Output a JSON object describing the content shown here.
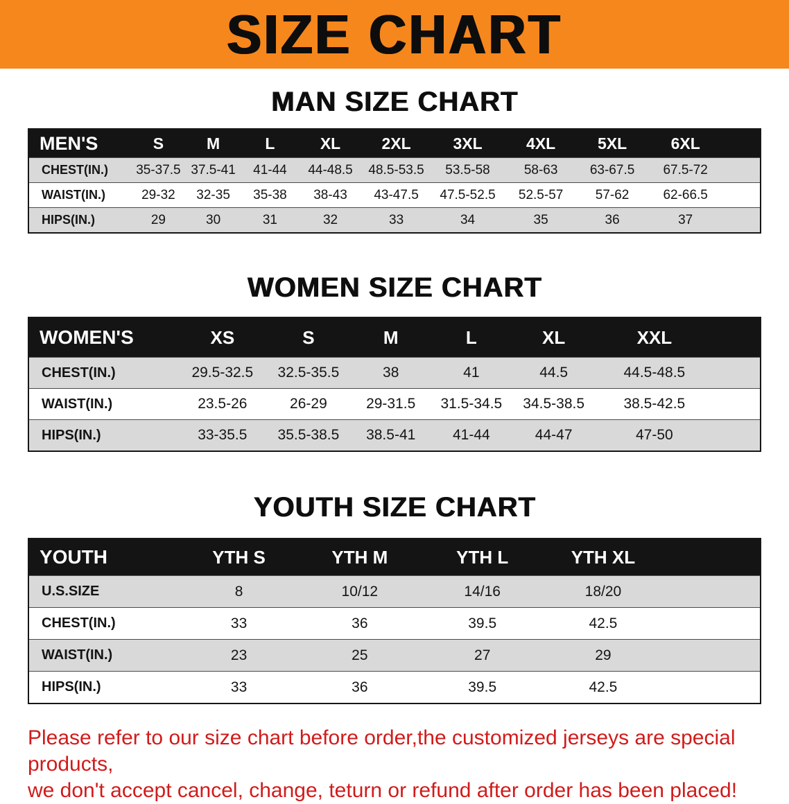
{
  "banner": {
    "title": "SIZE CHART",
    "bg_color": "#f6871d"
  },
  "colors": {
    "table_header_bg": "#141414",
    "row_stripe": "#d9d9d9",
    "disclaimer_text": "#d11b1b"
  },
  "sections": [
    {
      "heading": "MAN SIZE CHART",
      "table": {
        "title": "MEN'S",
        "columns": [
          "MEN'S",
          "S",
          "M",
          "L",
          "XL",
          "2XL",
          "3XL",
          "4XL",
          "5XL",
          "6XL"
        ],
        "rows": [
          {
            "label": "CHEST(IN.)",
            "values": [
              "35-37.5",
              "37.5-41",
              "41-44",
              "44-48.5",
              "48.5-53.5",
              "53.5-58",
              "58-63",
              "63-67.5",
              "67.5-72"
            ]
          },
          {
            "label": "WAIST(IN.)",
            "values": [
              "29-32",
              "32-35",
              "35-38",
              "38-43",
              "43-47.5",
              "47.5-52.5",
              "52.5-57",
              "57-62",
              "62-66.5"
            ]
          },
          {
            "label": "HIPS(IN.)",
            "values": [
              "29",
              "30",
              "31",
              "32",
              "33",
              "34",
              "35",
              "36",
              "37"
            ]
          }
        ]
      }
    },
    {
      "heading": "WOMEN SIZE CHART",
      "table": {
        "title": "WOMEN'S",
        "columns": [
          "WOMEN'S",
          "XS",
          "S",
          "M",
          "L",
          "XL",
          "XXL"
        ],
        "rows": [
          {
            "label": "CHEST(IN.)",
            "values": [
              "29.5-32.5",
              "32.5-35.5",
              "38",
              "41",
              "44.5",
              "44.5-48.5"
            ]
          },
          {
            "label": "WAIST(IN.)",
            "values": [
              "23.5-26",
              "26-29",
              "29-31.5",
              "31.5-34.5",
              "34.5-38.5",
              "38.5-42.5"
            ]
          },
          {
            "label": "HIPS(IN.)",
            "values": [
              "33-35.5",
              "35.5-38.5",
              "38.5-41",
              "41-44",
              "44-47",
              "47-50"
            ]
          }
        ]
      }
    },
    {
      "heading": "YOUTH SIZE CHART",
      "table": {
        "title": "YOUTH",
        "columns": [
          "YOUTH",
          "YTH S",
          "YTH M",
          "YTH L",
          "YTH XL"
        ],
        "rows": [
          {
            "label": "U.S.SIZE",
            "values": [
              "8",
              "10/12",
              "14/16",
              "18/20"
            ]
          },
          {
            "label": "CHEST(IN.)",
            "values": [
              "33",
              "36",
              "39.5",
              "42.5"
            ]
          },
          {
            "label": "WAIST(IN.)",
            "values": [
              "23",
              "25",
              "27",
              "29"
            ]
          },
          {
            "label": "HIPS(IN.)",
            "values": [
              "33",
              "36",
              "39.5",
              "42.5"
            ]
          }
        ]
      }
    }
  ],
  "disclaimer": {
    "line1": "Please refer to our size chart before order,the customized jerseys are special products,",
    "line2": "we don't accept cancel, change, teturn or refund after order has been placed!"
  }
}
